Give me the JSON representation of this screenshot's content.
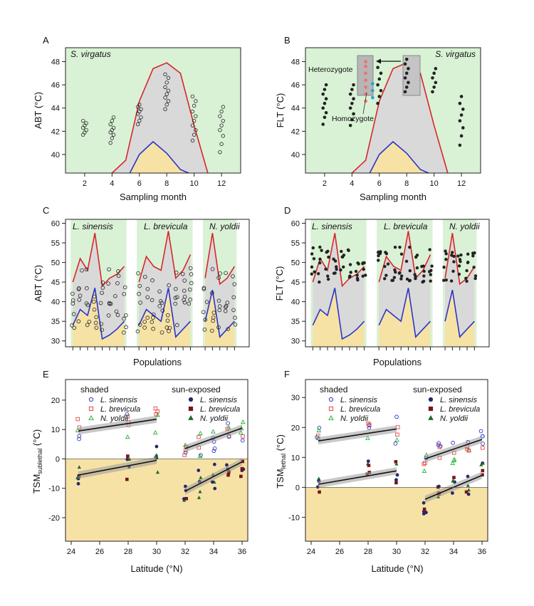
{
  "colors": {
    "background_green": "#d9f2d5",
    "above_band_grey": "#d9d9d9",
    "below_band_yellow": "#f7e2a6",
    "upper_line": "#d9252a",
    "lower_line": "#2a35c8",
    "series_sinensis": "#2a35c8",
    "series_brevicula": "#e24a4a",
    "series_yoldii": "#27b23a",
    "dark_sinensis": "#27276f",
    "dark_brevicula": "#7a1515",
    "dark_yoldii": "#1e6b26"
  },
  "panels": {
    "A": {
      "letter": "A",
      "species": "S. virgatus",
      "ylabel": "ABT (°C)",
      "xlabel": "Sampling month"
    },
    "B": {
      "letter": "B",
      "species": "S. virgatus",
      "ylabel": "FLT (°C)",
      "xlabel": "Sampling month",
      "annotations": {
        "heterozygote": "Heterozygote",
        "homozygote": "Homozygote"
      }
    },
    "C": {
      "letter": "C",
      "ylabel": "ABT (°C)",
      "xlabel": "Populations",
      "groups": [
        "L. sinensis",
        "L. brevicula",
        "N. yoldii"
      ]
    },
    "D": {
      "letter": "D",
      "ylabel": "FLT (°C)",
      "xlabel": "Populations",
      "groups": [
        "L. sinensis",
        "L. brevicula",
        "N. yoldii"
      ]
    },
    "E": {
      "letter": "E",
      "ylabel_main": "TSM",
      "ylabel_sub": "sublethal",
      "ylabel_unit": " (°C)",
      "xlabel": "Latitude (°N)",
      "legend": {
        "shaded_title": "shaded",
        "sun_title": "sun-exposed",
        "entries": [
          "L. sinensis",
          "L. brevicula",
          "N. yoldii"
        ]
      }
    },
    "F": {
      "letter": "F",
      "ylabel_main": "TSM",
      "ylabel_sub": "lethal",
      "ylabel_unit": " (°C)",
      "xlabel": "Latitude (°N)",
      "legend": {
        "shaded_title": "shaded",
        "sun_title": "sun-exposed",
        "entries": [
          "L. sinensis",
          "L. brevicula",
          "N. yoldii"
        ]
      }
    }
  },
  "chart_data": [
    {
      "panel": "A",
      "type": "scatter",
      "xlim": [
        0.6,
        13.4
      ],
      "ylim": [
        38.4,
        49.2
      ],
      "xticks": [
        2,
        4,
        6,
        8,
        10,
        12
      ],
      "yticks": [
        40,
        42,
        44,
        46,
        48
      ],
      "upper_curve": {
        "x": [
          4,
          5,
          6,
          7,
          8,
          9,
          10,
          11
        ],
        "y": [
          38.4,
          39.5,
          44.6,
          47.4,
          47.9,
          47.0,
          42.5,
          38.4
        ]
      },
      "lower_curve": {
        "x": [
          5.3,
          6,
          7,
          8,
          9,
          9.6
        ],
        "y": [
          38.4,
          40.0,
          41.1,
          40.1,
          38.7,
          38.4
        ]
      },
      "points": [
        {
          "x": 2,
          "y": [
            41.7,
            41.9,
            42.1,
            42.3,
            42.5,
            42.7,
            42.9
          ]
        },
        {
          "x": 4,
          "y": [
            41.0,
            41.4,
            41.7,
            41.9,
            42.1,
            42.3,
            42.6,
            42.9,
            43.2
          ]
        },
        {
          "x": 6,
          "y": [
            42.6,
            42.9,
            43.2,
            43.5,
            43.7,
            43.9,
            44.1,
            44.3
          ]
        },
        {
          "x": 8,
          "y": [
            43.9,
            44.3,
            44.6,
            44.9,
            45.2,
            45.5,
            45.8,
            46.2,
            46.6,
            46.9
          ]
        },
        {
          "x": 10,
          "y": [
            41.2,
            41.7,
            42.1,
            42.5,
            42.9,
            43.3,
            43.7,
            44.2,
            44.6,
            45.0
          ]
        },
        {
          "x": 12,
          "y": [
            40.2,
            40.9,
            41.6,
            42.1,
            42.5,
            42.9,
            43.3,
            43.7,
            44.1
          ]
        }
      ]
    },
    {
      "panel": "B",
      "type": "scatter",
      "xlim": [
        0.6,
        13.4
      ],
      "ylim": [
        38.4,
        49.2
      ],
      "xticks": [
        2,
        4,
        6,
        8,
        10,
        12
      ],
      "yticks": [
        40,
        42,
        44,
        46,
        48
      ],
      "upper_curve": {
        "x": [
          4,
          5,
          6,
          7,
          8,
          9,
          10,
          11
        ],
        "y": [
          38.4,
          39.5,
          44.6,
          47.4,
          47.9,
          47.0,
          42.5,
          38.4
        ]
      },
      "lower_curve": {
        "x": [
          5.3,
          6,
          7,
          8,
          9,
          9.6
        ],
        "y": [
          38.4,
          40.0,
          41.1,
          40.1,
          38.7,
          38.4
        ]
      },
      "points": [
        {
          "x": 2,
          "y": [
            42.6,
            43.2,
            43.6,
            44.0,
            44.4,
            44.8,
            45.2,
            45.6,
            46.0
          ]
        },
        {
          "x": 4,
          "y": [
            42.5,
            43.0,
            43.5,
            44.0,
            44.4,
            44.8,
            45.2,
            45.6,
            46.0
          ]
        },
        {
          "x": 6,
          "y": [
            44.4,
            45.0,
            45.5,
            46.0,
            46.5,
            47.0,
            47.5
          ]
        },
        {
          "x": 8,
          "y": [
            45.4,
            45.8,
            46.2,
            46.6,
            47.0,
            47.4,
            47.8,
            48.2
          ]
        },
        {
          "x": 10,
          "y": [
            45.4,
            45.8,
            46.2,
            46.6,
            47.0,
            47.4
          ]
        },
        {
          "x": 12,
          "y": [
            40.8,
            41.6,
            42.3,
            42.9,
            43.4,
            43.9,
            44.4,
            45.0
          ]
        }
      ],
      "hetero_points": {
        "x": 5,
        "y": [
          44.6,
          45.2,
          45.8,
          46.4,
          47.0,
          47.6,
          48.0
        ]
      },
      "homo_points": {
        "x": 5.3,
        "y": [
          44.9,
          45.5,
          46.1
        ]
      }
    },
    {
      "panel": "C",
      "type": "scatter",
      "xlim": [
        0,
        25
      ],
      "ylim": [
        28.5,
        61
      ],
      "yticks": [
        30,
        35,
        40,
        45,
        50,
        55,
        60
      ],
      "group_spans": [
        [
          0.7,
          8.3
        ],
        [
          9.7,
          17.3
        ],
        [
          18.7,
          23.3
        ]
      ],
      "upper_curve": [
        [
          1,
          45
        ],
        [
          2,
          51
        ],
        [
          3,
          48
        ],
        [
          4,
          57.5
        ],
        [
          5,
          44
        ],
        [
          6,
          46
        ],
        [
          7,
          47
        ],
        [
          8,
          49
        ]
      ],
      "upper_curve_b": [
        [
          10,
          45
        ],
        [
          11,
          51.5
        ],
        [
          12,
          49
        ],
        [
          13,
          48
        ],
        [
          14,
          58
        ],
        [
          15,
          46
        ],
        [
          16,
          48
        ],
        [
          17,
          52
        ]
      ],
      "upper_curve_c": [
        [
          19,
          46
        ],
        [
          20,
          57.5
        ],
        [
          21,
          44.5
        ],
        [
          22,
          46
        ],
        [
          23,
          49
        ]
      ],
      "lower_curve": [
        [
          1,
          34
        ],
        [
          2,
          38
        ],
        [
          3,
          36.5
        ],
        [
          4,
          43.5
        ],
        [
          5,
          30.5
        ],
        [
          6,
          31.5
        ],
        [
          7,
          33
        ],
        [
          8,
          35
        ]
      ],
      "lower_curve_b": [
        [
          10,
          34
        ],
        [
          11,
          38
        ],
        [
          12,
          36.5
        ],
        [
          13,
          35
        ],
        [
          14,
          43.5
        ],
        [
          15,
          31
        ],
        [
          16,
          33
        ],
        [
          17,
          35
        ]
      ],
      "lower_curve_c": [
        [
          19,
          35
        ],
        [
          20,
          43
        ],
        [
          21,
          31
        ],
        [
          22,
          33
        ],
        [
          23,
          35
        ]
      ]
    },
    {
      "panel": "D",
      "type": "scatter",
      "xlim": [
        0,
        25
      ],
      "ylim": [
        28.5,
        61
      ],
      "yticks": [
        30,
        35,
        40,
        45,
        50,
        55,
        60
      ],
      "group_spans": [
        [
          0.7,
          8.3
        ],
        [
          9.7,
          17.3
        ],
        [
          18.7,
          23.3
        ]
      ]
    },
    {
      "panel": "E",
      "type": "scatter",
      "xlim": [
        23.6,
        36.4
      ],
      "ylim": [
        -28,
        27
      ],
      "xticks": [
        24,
        26,
        28,
        30,
        32,
        34,
        36
      ],
      "yticks": [
        -20,
        -10,
        0,
        10,
        20
      ],
      "series": [
        {
          "name": "L. sinensis",
          "condition": "shaded"
        },
        {
          "name": "L. brevicula",
          "condition": "shaded"
        },
        {
          "name": "N. yoldii",
          "condition": "shaded"
        },
        {
          "name": "L. sinensis",
          "condition": "sun-exposed"
        },
        {
          "name": "L. brevicula",
          "condition": "sun-exposed"
        },
        {
          "name": "N. yoldii",
          "condition": "sun-exposed"
        }
      ],
      "fits": [
        {
          "condition": "shaded-upper",
          "x": [
            24.5,
            30
          ],
          "y": [
            9.5,
            13.5
          ]
        },
        {
          "condition": "shaded-lower",
          "x": [
            24.5,
            30
          ],
          "y": [
            -5.5,
            -0.5
          ]
        },
        {
          "condition": "sun-upper",
          "x": [
            32,
            36
          ],
          "y": [
            3.5,
            10.5
          ]
        },
        {
          "condition": "sun-lower",
          "x": [
            32,
            36
          ],
          "y": [
            -11,
            -1
          ]
        }
      ]
    },
    {
      "panel": "F",
      "type": "scatter",
      "xlim": [
        23.6,
        36.4
      ],
      "ylim": [
        -18,
        36
      ],
      "xticks": [
        24,
        26,
        28,
        30,
        32,
        34,
        36
      ],
      "yticks": [
        -10,
        0,
        10,
        20,
        30
      ],
      "series": [
        {
          "name": "L. sinensis",
          "condition": "shaded"
        },
        {
          "name": "L. brevicula",
          "condition": "shaded"
        },
        {
          "name": "N. yoldii",
          "condition": "shaded"
        },
        {
          "name": "L. sinensis",
          "condition": "sun-exposed"
        },
        {
          "name": "L. brevicula",
          "condition": "sun-exposed"
        },
        {
          "name": "N. yoldii",
          "condition": "sun-exposed"
        }
      ],
      "fits": [
        {
          "condition": "shaded-upper",
          "x": [
            24.5,
            30
          ],
          "y": [
            15.5,
            19.5
          ]
        },
        {
          "condition": "shaded-lower",
          "x": [
            24.5,
            30
          ],
          "y": [
            1,
            5.5
          ]
        },
        {
          "condition": "sun-upper",
          "x": [
            32,
            36
          ],
          "y": [
            9.5,
            16
          ]
        },
        {
          "condition": "sun-lower",
          "x": [
            32,
            36
          ],
          "y": [
            -4,
            4
          ]
        }
      ]
    }
  ]
}
